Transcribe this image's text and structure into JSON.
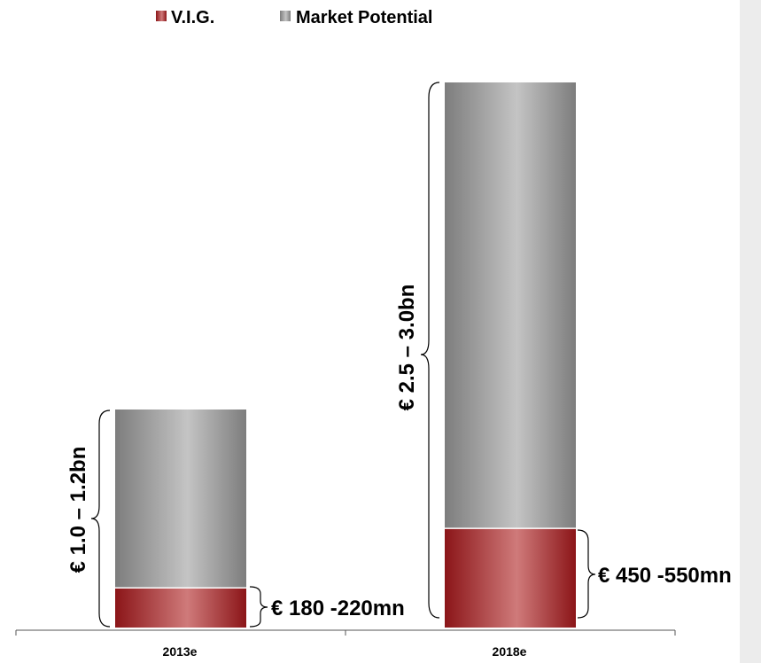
{
  "colors": {
    "vig_dark": "#8b1518",
    "vig_light": "#cf7a7a",
    "market_dark": "#7d7d7d",
    "market_light": "#c4c4c4",
    "side_strip": "#ececec"
  },
  "chart_data": {
    "type": "bar",
    "stacked": true,
    "categories": [
      "2013e",
      "2018e"
    ],
    "series": [
      {
        "name": "V.I.G.",
        "values": [
          200,
          500
        ]
      },
      {
        "name": "Market Potential",
        "values": [
          900,
          2250
        ]
      }
    ],
    "totals": [
      1100,
      2750
    ],
    "ylim": [
      0,
      2750
    ],
    "grid": false,
    "legend": {
      "position": "top-center",
      "entries": [
        "V.I.G.",
        "Market Potential"
      ]
    },
    "annotations": {
      "vig_2013": "€ 180 -220mn",
      "vig_2018": "€ 450 -550mn",
      "total_2013": "€ 1.0 – 1.2bn",
      "total_2018": "€ 2.5 – 3.0bn"
    }
  }
}
